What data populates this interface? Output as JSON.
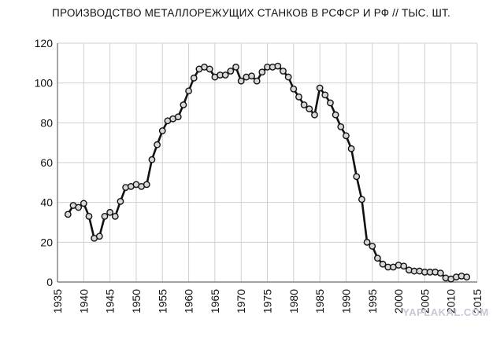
{
  "chart_data": {
    "type": "line",
    "title": "ПРОИЗВОДСТВО МЕТАЛЛОРЕЖУЩИХ СТАНКОВ В РСФСР И РФ // ТЫС. ШТ.",
    "xlabel": "",
    "ylabel": "",
    "xlim": [
      1935,
      2015
    ],
    "ylim": [
      0,
      120
    ],
    "x_ticks": [
      "1935",
      "1940",
      "1945",
      "1950",
      "1955",
      "1960",
      "1965",
      "1970",
      "1975",
      "1980",
      "1985",
      "1990",
      "1995",
      "2000",
      "2005",
      "2010",
      "2015"
    ],
    "y_ticks": [
      "0",
      "20",
      "40",
      "60",
      "80",
      "100",
      "120"
    ],
    "grid": true,
    "legend": "none",
    "series": [
      {
        "x": [
          1937,
          1938,
          1939,
          1940,
          1941,
          1942,
          1943,
          1944,
          1945,
          1946,
          1947,
          1948,
          1949,
          1950,
          1951,
          1952,
          1953,
          1954,
          1955,
          1956,
          1957,
          1958,
          1959,
          1960,
          1961,
          1962,
          1963,
          1964,
          1965,
          1966,
          1967,
          1968,
          1969,
          1970,
          1971,
          1972,
          1973,
          1974,
          1975,
          1976,
          1977,
          1978,
          1979,
          1980,
          1981,
          1982,
          1983,
          1984,
          1985,
          1986,
          1987,
          1988,
          1989,
          1990,
          1991,
          1992,
          1993,
          1994,
          1995,
          1996,
          1997,
          1998,
          1999,
          2000,
          2001,
          2002,
          2003,
          2004,
          2005,
          2006,
          2007,
          2008,
          2009,
          2010,
          2011,
          2012,
          2013
        ],
        "values": [
          34,
          38.5,
          37.5,
          39.5,
          33,
          22,
          23,
          33,
          35,
          33,
          40.5,
          47.5,
          48,
          49,
          48,
          49,
          61.5,
          69,
          76,
          81,
          82,
          83,
          89,
          96,
          102.5,
          107,
          108,
          107,
          103,
          104,
          104,
          106,
          108,
          101,
          103,
          103.5,
          101,
          105.5,
          108,
          108,
          108.5,
          106,
          103,
          97,
          93,
          89,
          87,
          84,
          97.5,
          94,
          90,
          84,
          78,
          73.5,
          67,
          53,
          41.5,
          20,
          18,
          12,
          9,
          7.5,
          7.5,
          8.5,
          8,
          6,
          5.5,
          5.5,
          5,
          5,
          5,
          4.5,
          2,
          1.5,
          2.5,
          3,
          2.5
        ]
      }
    ],
    "colors": {
      "line": "#111111",
      "marker_fill": "#d8d8d8",
      "grid": "#cfcfcf"
    }
  },
  "watermark": "YAPLAKAL.COM"
}
